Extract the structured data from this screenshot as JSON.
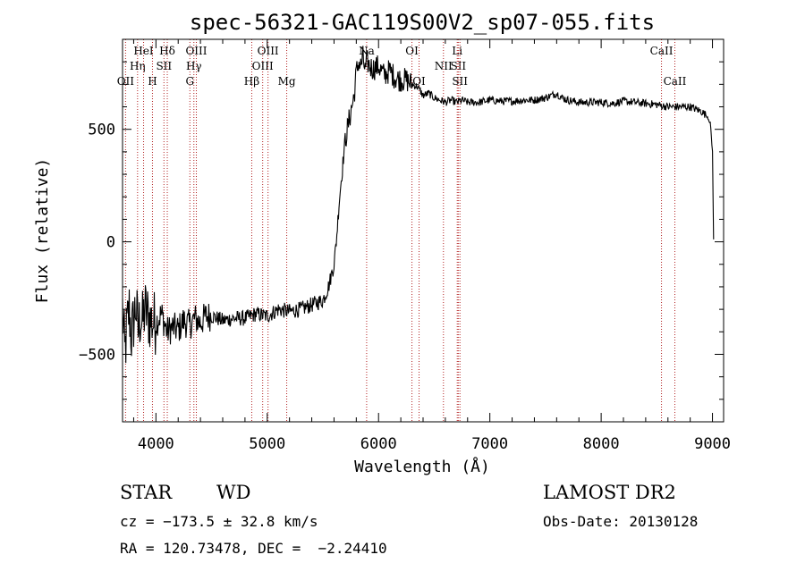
{
  "chart_data": {
    "type": "line",
    "title": "spec-56321-GAC119S00V2_sp07-055.fits",
    "xlabel": "Wavelength (Å)",
    "ylabel": "Flux (relative)",
    "xlim": [
      3700,
      9100
    ],
    "ylim": [
      -800,
      900
    ],
    "x_ticks": [
      4000,
      5000,
      6000,
      7000,
      8000,
      9000
    ],
    "y_ticks": [
      -500,
      0,
      500
    ],
    "grid": false,
    "series": [
      {
        "x": [
          3700,
          3720,
          3740,
          3760,
          3780,
          3800,
          3820,
          3840,
          3860,
          3880,
          3900,
          3950,
          4000,
          4050,
          4100,
          4150,
          4200,
          4250,
          4300,
          4350,
          4400,
          4450,
          4500,
          4600,
          4700,
          4800,
          4850,
          4900,
          5000,
          5100,
          5200,
          5300,
          5400,
          5500,
          5550,
          5600,
          5620,
          5650,
          5680,
          5700,
          5720,
          5740,
          5760,
          5780,
          5800,
          5820,
          5840,
          5860,
          5880,
          5900,
          5920,
          5950,
          6000,
          6050,
          6100,
          6150,
          6200,
          6250,
          6300,
          6350,
          6400,
          6450,
          6500,
          6550,
          6600,
          6650,
          6700,
          6750,
          6800,
          6900,
          7000,
          7100,
          7200,
          7300,
          7400,
          7500,
          7600,
          7650,
          7700,
          7800,
          7900,
          8000,
          8100,
          8200,
          8300,
          8400,
          8500,
          8600,
          8700,
          8800,
          8900,
          8950,
          8980,
          9000,
          9010
        ],
        "y": [
          -300,
          -500,
          -380,
          -300,
          -420,
          -350,
          -280,
          -400,
          -330,
          -360,
          -300,
          -350,
          -360,
          -320,
          -400,
          -380,
          -390,
          -350,
          -370,
          -340,
          -360,
          -330,
          -330,
          -350,
          -340,
          -340,
          -330,
          -320,
          -330,
          -300,
          -310,
          -300,
          -280,
          -260,
          -200,
          -100,
          0,
          200,
          350,
          450,
          500,
          550,
          600,
          650,
          750,
          800,
          780,
          820,
          760,
          800,
          780,
          770,
          780,
          740,
          760,
          730,
          720,
          720,
          700,
          690,
          650,
          660,
          640,
          630,
          620,
          630,
          620,
          630,
          620,
          620,
          630,
          625,
          625,
          630,
          630,
          640,
          660,
          640,
          630,
          620,
          620,
          620,
          615,
          625,
          620,
          615,
          610,
          600,
          600,
          600,
          580,
          560,
          530,
          400,
          10
        ]
      }
    ],
    "lines": [
      {
        "x": 3727,
        "label": "OII",
        "row": 3
      },
      {
        "x": 3835,
        "label": "Hη",
        "row": 2
      },
      {
        "x": 3889,
        "label": "HeI",
        "row": 1
      },
      {
        "x": 3969,
        "label": "H",
        "row": 3
      },
      {
        "x": 4072,
        "label": "SII",
        "row": 2
      },
      {
        "x": 4102,
        "label": "Hδ",
        "row": 1
      },
      {
        "x": 4305,
        "label": "G",
        "row": 3
      },
      {
        "x": 4341,
        "label": "Hγ",
        "row": 2
      },
      {
        "x": 4363,
        "label": "OIII",
        "row": 1
      },
      {
        "x": 4861,
        "label": "Hβ",
        "row": 3
      },
      {
        "x": 4959,
        "label": "OIII",
        "row": 2
      },
      {
        "x": 5007,
        "label": "OIII",
        "row": 1
      },
      {
        "x": 5175,
        "label": "Mg",
        "row": 3
      },
      {
        "x": 5893,
        "label": "Na",
        "row": 1
      },
      {
        "x": 6300,
        "label": "OI",
        "row": 1
      },
      {
        "x": 6364,
        "label": "OI",
        "row": 3
      },
      {
        "x": 6583,
        "label": "NII",
        "row": 2
      },
      {
        "x": 6707,
        "label": "Li",
        "row": 1
      },
      {
        "x": 6716,
        "label": "SII",
        "row": 2
      },
      {
        "x": 6731,
        "label": "SII",
        "row": 3
      },
      {
        "x": 8542,
        "label": "CaII",
        "row": 1
      },
      {
        "x": 8662,
        "label": "CaII",
        "row": 3
      }
    ]
  },
  "info": {
    "class": "STAR",
    "subclass": "WD",
    "survey": "LAMOST DR2",
    "cz": "cz = −173.5 ± 32.8 km/s",
    "obs_date": "Obs-Date: 20130128",
    "radec": "RA = 120.73478, DEC =  −2.24410"
  }
}
